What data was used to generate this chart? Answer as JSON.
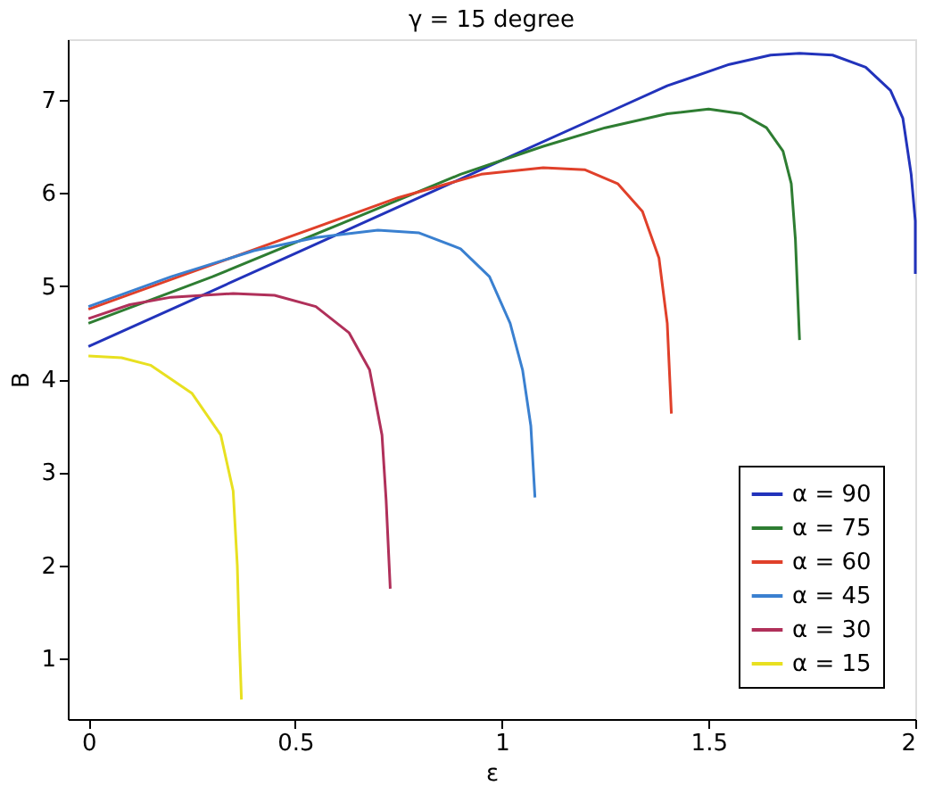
{
  "chart_data": {
    "type": "line",
    "title": "γ = 15 degree",
    "xlabel": "ε",
    "ylabel": "B",
    "xlim": [
      -0.05,
      2
    ],
    "ylim": [
      0.35,
      7.65
    ],
    "xticks": [
      0,
      0.5,
      1,
      1.5,
      2
    ],
    "yticks": [
      1,
      2,
      3,
      4,
      5,
      6,
      7
    ],
    "grid": false,
    "legend": "bottom right",
    "marker": "none",
    "line_style": "solid",
    "series": [
      {
        "name": "α = 90",
        "color": "#2233bb",
        "x": [
          0,
          0.25,
          0.5,
          0.75,
          1.0,
          1.25,
          1.4,
          1.55,
          1.65,
          1.72,
          1.8,
          1.88,
          1.94,
          1.97,
          1.99,
          2.0,
          2.0
        ],
        "values": [
          4.35,
          4.85,
          5.35,
          5.85,
          6.35,
          6.85,
          7.15,
          7.38,
          7.48,
          7.5,
          7.48,
          7.35,
          7.1,
          6.8,
          6.2,
          5.7,
          5.13
        ]
      },
      {
        "name": "α = 75",
        "color": "#2e7d32",
        "x": [
          0,
          0.3,
          0.6,
          0.9,
          1.1,
          1.25,
          1.4,
          1.5,
          1.58,
          1.64,
          1.68,
          1.7,
          1.71,
          1.72
        ],
        "values": [
          4.6,
          5.1,
          5.65,
          6.2,
          6.5,
          6.7,
          6.85,
          6.9,
          6.85,
          6.7,
          6.45,
          6.1,
          5.5,
          4.42
        ]
      },
      {
        "name": "α = 60",
        "color": "#e0402a",
        "x": [
          0,
          0.25,
          0.5,
          0.75,
          0.95,
          1.1,
          1.2,
          1.28,
          1.34,
          1.38,
          1.4,
          1.41
        ],
        "values": [
          4.75,
          5.15,
          5.55,
          5.95,
          6.2,
          6.27,
          6.25,
          6.1,
          5.8,
          5.3,
          4.6,
          3.63
        ]
      },
      {
        "name": "α = 45",
        "color": "#3a80d0",
        "x": [
          0,
          0.2,
          0.4,
          0.55,
          0.7,
          0.8,
          0.9,
          0.97,
          1.02,
          1.05,
          1.07,
          1.08
        ],
        "values": [
          4.78,
          5.1,
          5.38,
          5.52,
          5.6,
          5.57,
          5.4,
          5.1,
          4.6,
          4.1,
          3.5,
          2.73
        ]
      },
      {
        "name": "α = 30",
        "color": "#b0305a",
        "x": [
          0,
          0.1,
          0.2,
          0.35,
          0.45,
          0.55,
          0.63,
          0.68,
          0.71,
          0.72,
          0.73
        ],
        "values": [
          4.65,
          4.8,
          4.88,
          4.92,
          4.9,
          4.78,
          4.5,
          4.1,
          3.4,
          2.7,
          1.75
        ]
      },
      {
        "name": "α = 15",
        "color": "#e8e020",
        "x": [
          0,
          0.08,
          0.15,
          0.25,
          0.32,
          0.35,
          0.36,
          0.365,
          0.37
        ],
        "values": [
          4.25,
          4.23,
          4.15,
          3.85,
          3.4,
          2.8,
          2.0,
          1.2,
          0.56
        ]
      }
    ]
  }
}
